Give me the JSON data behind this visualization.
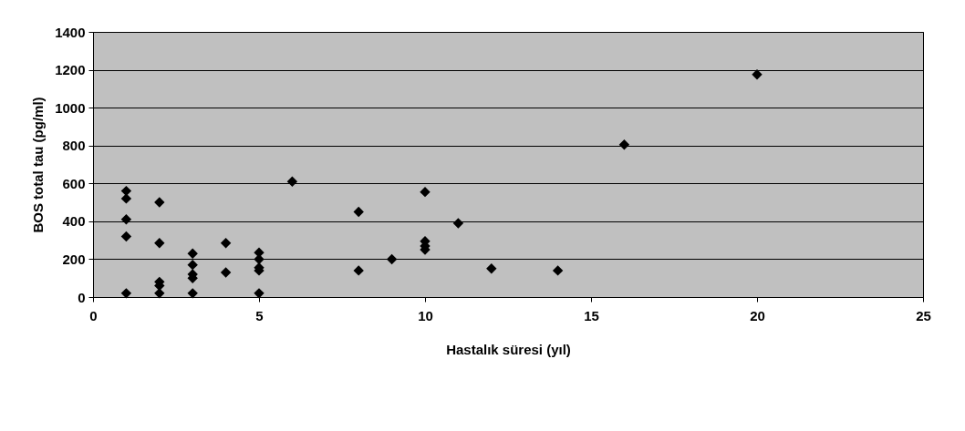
{
  "chart_data": {
    "type": "scatter",
    "xlabel": "Hastalık süresi (yıl)",
    "ylabel": "BOS total tau (pg/ml)",
    "x": [
      1,
      1,
      1,
      1,
      1,
      2,
      2,
      2,
      2,
      2,
      3,
      3,
      3,
      3,
      3,
      4,
      4,
      5,
      5,
      5,
      5,
      5,
      6,
      8,
      8,
      9,
      10,
      10,
      10,
      10,
      11,
      12,
      14,
      16,
      20
    ],
    "series": [
      {
        "color": "#000000",
        "values": [
          560,
          520,
          410,
          320,
          20,
          500,
          285,
          80,
          60,
          20,
          230,
          170,
          120,
          100,
          20,
          285,
          130,
          235,
          200,
          155,
          140,
          20,
          610,
          450,
          140,
          200,
          555,
          295,
          270,
          250,
          390,
          150,
          140,
          805,
          1175
        ]
      }
    ],
    "xlim": [
      0,
      25
    ],
    "xticks": [
      0,
      5,
      10,
      15,
      20,
      25
    ],
    "ylim": [
      0,
      1400
    ],
    "yticks": [
      0,
      200,
      400,
      600,
      800,
      1000,
      1200,
      1400
    ],
    "grid": "y",
    "marker": "diamond",
    "legend": false
  }
}
